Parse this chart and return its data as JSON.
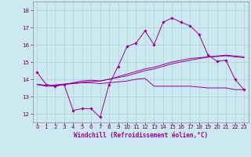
{
  "xlabel": "Windchill (Refroidissement éolien,°C)",
  "background_color": "#cce8f0",
  "grid_color": "#aacccc",
  "line_color": "#990099",
  "xlim": [
    -0.5,
    23.5
  ],
  "ylim": [
    11.5,
    18.5
  ],
  "xticks": [
    0,
    1,
    2,
    3,
    4,
    5,
    6,
    7,
    8,
    9,
    10,
    11,
    12,
    13,
    14,
    15,
    16,
    17,
    18,
    19,
    20,
    21,
    22,
    23
  ],
  "yticks": [
    12,
    13,
    14,
    15,
    16,
    17,
    18
  ],
  "series1_x": [
    0,
    1,
    2,
    3,
    4,
    5,
    6,
    7,
    8,
    9,
    10,
    11,
    12,
    13,
    14,
    15,
    16,
    17,
    18,
    19,
    20,
    21,
    22,
    23
  ],
  "series1_y": [
    14.4,
    13.7,
    13.6,
    13.7,
    12.2,
    12.3,
    12.3,
    11.8,
    13.7,
    14.75,
    15.9,
    16.1,
    16.8,
    16.0,
    17.3,
    17.55,
    17.3,
    17.1,
    16.6,
    15.4,
    15.05,
    15.1,
    14.0,
    13.4
  ],
  "series2_x": [
    0,
    1,
    2,
    3,
    4,
    5,
    6,
    7,
    8,
    9,
    10,
    11,
    12,
    13,
    14,
    15,
    16,
    17,
    18,
    19,
    20,
    21,
    22,
    23
  ],
  "series2_y": [
    13.7,
    13.6,
    13.6,
    13.7,
    13.75,
    13.8,
    13.8,
    13.75,
    13.8,
    13.85,
    13.9,
    14.0,
    14.05,
    13.6,
    13.6,
    13.6,
    13.6,
    13.6,
    13.55,
    13.5,
    13.5,
    13.5,
    13.4,
    13.4
  ],
  "series3_x": [
    0,
    1,
    2,
    3,
    4,
    5,
    6,
    7,
    8,
    9,
    10,
    11,
    12,
    13,
    14,
    15,
    16,
    17,
    18,
    19,
    20,
    21,
    22,
    23
  ],
  "series3_y": [
    13.7,
    13.65,
    13.65,
    13.7,
    13.8,
    13.9,
    13.95,
    13.9,
    14.0,
    14.15,
    14.3,
    14.45,
    14.6,
    14.7,
    14.85,
    15.0,
    15.1,
    15.2,
    15.25,
    15.3,
    15.35,
    15.4,
    15.35,
    15.3
  ],
  "series4_x": [
    0,
    1,
    2,
    3,
    4,
    5,
    6,
    7,
    8,
    9,
    10,
    11,
    12,
    13,
    14,
    15,
    16,
    17,
    18,
    19,
    20,
    21,
    22,
    23
  ],
  "series4_y": [
    13.7,
    13.65,
    13.67,
    13.72,
    13.77,
    13.82,
    13.87,
    13.9,
    14.0,
    14.1,
    14.2,
    14.35,
    14.5,
    14.6,
    14.75,
    14.9,
    15.0,
    15.1,
    15.2,
    15.28,
    15.32,
    15.36,
    15.3,
    15.25
  ],
  "tick_fontsize": 5,
  "xlabel_fontsize": 5.5,
  "marker": "D",
  "markersize": 1.8,
  "linewidth": 0.7
}
